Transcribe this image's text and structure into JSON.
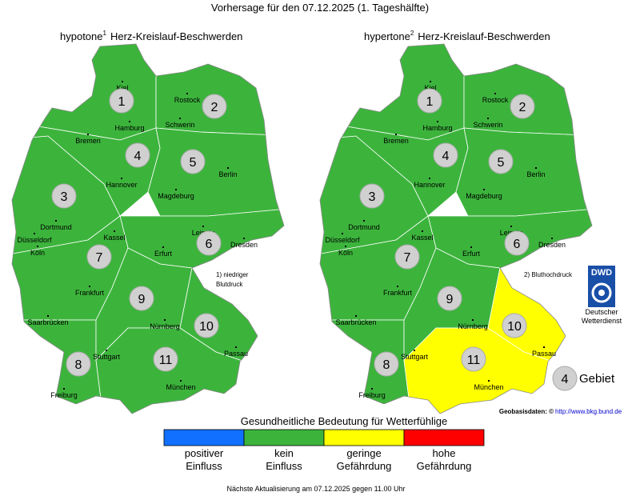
{
  "title": "Vorhersage für den 07.12.2025 (1. Tageshälfte)",
  "maps": [
    {
      "name": "hypotone",
      "sup": "1",
      "subtitle": "Herz-Kreislauf-Beschwerden",
      "note": [
        "1) niedriger",
        "Blutdruck"
      ],
      "regions": [
        {
          "label": "1",
          "level": 1
        },
        {
          "label": "2",
          "level": 1
        },
        {
          "label": "3",
          "level": 1
        },
        {
          "label": "4",
          "level": 1
        },
        {
          "label": "5",
          "level": 1
        },
        {
          "label": "6",
          "level": 1
        },
        {
          "label": "7",
          "level": 1
        },
        {
          "label": "8",
          "level": 1
        },
        {
          "label": "9",
          "level": 1
        },
        {
          "label": "10",
          "level": 1
        },
        {
          "label": "11",
          "level": 1
        }
      ]
    },
    {
      "name": "hypertone",
      "sup": "2",
      "subtitle": "Herz-Kreislauf-Beschwerden",
      "note": [
        "2) Bluthochdruck"
      ],
      "regions": [
        {
          "label": "1",
          "level": 1
        },
        {
          "label": "2",
          "level": 1
        },
        {
          "label": "3",
          "level": 1
        },
        {
          "label": "4",
          "level": 1
        },
        {
          "label": "5",
          "level": 1
        },
        {
          "label": "6",
          "level": 1
        },
        {
          "label": "7",
          "level": 1
        },
        {
          "label": "8",
          "level": 1
        },
        {
          "label": "9",
          "level": 1
        },
        {
          "label": "10",
          "level": 2
        },
        {
          "label": "11",
          "level": 2
        }
      ]
    }
  ],
  "cities": [
    "Kiel",
    "Rostock",
    "Hamburg",
    "Schwerin",
    "Bremen",
    "Berlin",
    "Hannover",
    "Magdeburg",
    "Dortmund",
    "Düsseldorf",
    "Köln",
    "Kassel",
    "Leipzig",
    "Dresden",
    "Erfurt",
    "Frankfurt",
    "Saarbrücken",
    "Nürnberg",
    "Stuttgart",
    "Passau",
    "Freiburg",
    "München"
  ],
  "logo": {
    "text": "DWD",
    "name": [
      "Deutscher",
      "Wetterdienst"
    ]
  },
  "area_key": {
    "number": "4",
    "label": "Gebiet"
  },
  "source": {
    "label": "Geobasisdaten: ©",
    "url": "http://www.bkg.bund.de"
  },
  "legend": {
    "title": "Gesundheitliche Bedeutung für Wetterfühlige",
    "items": [
      {
        "lines": [
          "positiver",
          "Einfluss"
        ],
        "color": "#1170ff"
      },
      {
        "lines": [
          "kein",
          "Einfluss"
        ],
        "color": "#3cb43c"
      },
      {
        "lines": [
          "geringe",
          "Gefährdung"
        ],
        "color": "#ffff00"
      },
      {
        "lines": [
          "hohe",
          "Gefährdung"
        ],
        "color": "#ff0000"
      }
    ]
  },
  "footer": "Nächste Aktualisierung am 07.12.2025 gegen 11.00 Uhr"
}
